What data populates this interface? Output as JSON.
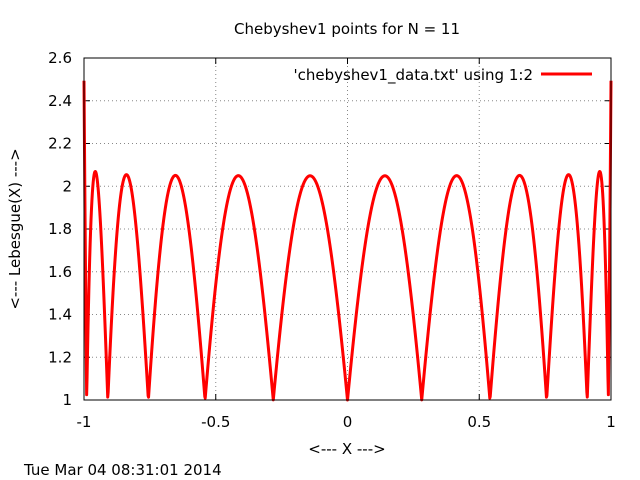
{
  "chart_data": {
    "type": "line",
    "title": "Chebyshev1 points for N = 11",
    "xlabel": "<--- X --->",
    "ylabel": "<--- Lebesgue(X) --->",
    "xlim": [
      -1,
      1
    ],
    "ylim": [
      1,
      2.6
    ],
    "xticks": [
      -1,
      -0.5,
      0,
      0.5,
      1
    ],
    "xtick_labels": [
      "-1",
      "-0.5",
      "0",
      "0.5",
      "1"
    ],
    "yticks": [
      1,
      1.2,
      1.4,
      1.6,
      1.8,
      2,
      2.2,
      2.4,
      2.6
    ],
    "ytick_labels": [
      "1",
      "1.2",
      "1.4",
      "1.6",
      "1.8",
      "2",
      "2.2",
      "2.4",
      "2.6"
    ],
    "grid": true,
    "legend_position": "top-right",
    "series": [
      {
        "name": "'chebyshev1_data.txt' using 1:2",
        "color": "#ff0000",
        "nodes": [
          -0.9898,
          -0.9096,
          -0.7557,
          -0.5406,
          -0.2817,
          0.0,
          0.2817,
          0.5406,
          0.7557,
          0.9096,
          0.9898
        ],
        "node_values": [
          1.13,
          1.05,
          1.0,
          1.0,
          1.01,
          1.0,
          1.01,
          1.0,
          1.0,
          1.05,
          1.13
        ],
        "endpoint_values": [
          2.49,
          2.49
        ],
        "peak_x": [
          -0.958,
          -0.837,
          -0.652,
          -0.416,
          -0.143,
          0.143,
          0.416,
          0.652,
          0.837,
          0.958
        ],
        "peak_values": [
          2.07,
          2.05,
          2.05,
          2.05,
          2.05,
          2.05,
          2.05,
          2.05,
          2.05,
          2.07
        ]
      }
    ]
  },
  "footer": {
    "timestamp": "Tue Mar 04 08:31:01 2014"
  }
}
